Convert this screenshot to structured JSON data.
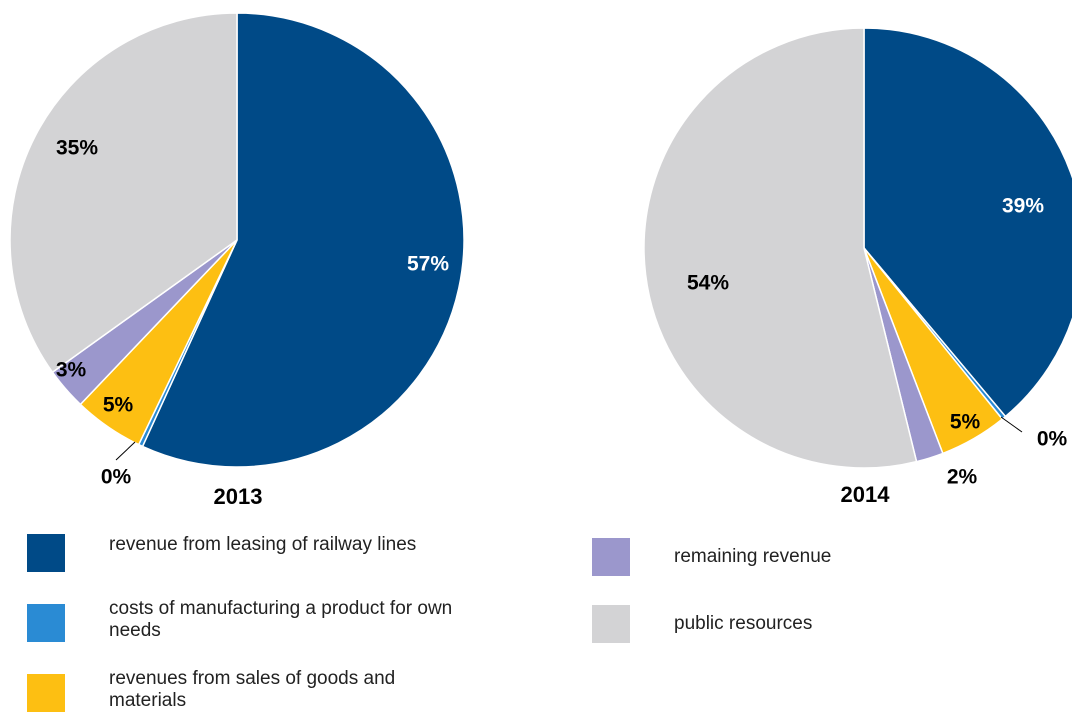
{
  "colors": {
    "leasing": "#004a87",
    "costs": "#2a8bd4",
    "sales": "#fdbf12",
    "remaining": "#9b97cc",
    "public": "#d3d3d5"
  },
  "chart_data": [
    {
      "type": "pie",
      "title": "2013",
      "slices": [
        {
          "category": "revenue from leasing of railway lines",
          "value": 57,
          "label": "57%"
        },
        {
          "category": "costs of manufacturing a product for own needs",
          "value": 0.3,
          "label": "0%"
        },
        {
          "category": "revenues from sales of goods and materials",
          "value": 5,
          "label": "5%"
        },
        {
          "category": "remaining revenue",
          "value": 3,
          "label": "3%"
        },
        {
          "category": "public resources",
          "value": 35,
          "label": "35%"
        }
      ]
    },
    {
      "type": "pie",
      "title": "2014",
      "slices": [
        {
          "category": "revenue from leasing of railway lines",
          "value": 39,
          "label": "39%"
        },
        {
          "category": "costs of manufacturing a product for own needs",
          "value": 0.3,
          "label": "0%"
        },
        {
          "category": "revenues from sales of goods and materials",
          "value": 5,
          "label": "5%"
        },
        {
          "category": "remaining revenue",
          "value": 2,
          "label": "2%"
        },
        {
          "category": "public resources",
          "value": 54,
          "label": "54%"
        }
      ]
    }
  ],
  "legend": [
    {
      "label": "revenue from leasing of railway lines",
      "color_key": "leasing"
    },
    {
      "label": "costs of manufacturing a product for own needs",
      "color_key": "costs"
    },
    {
      "label": "revenues from sales of goods and materials",
      "color_key": "sales"
    },
    {
      "label": "remaining revenue",
      "color_key": "remaining"
    },
    {
      "label": "public resources",
      "color_key": "public"
    }
  ]
}
